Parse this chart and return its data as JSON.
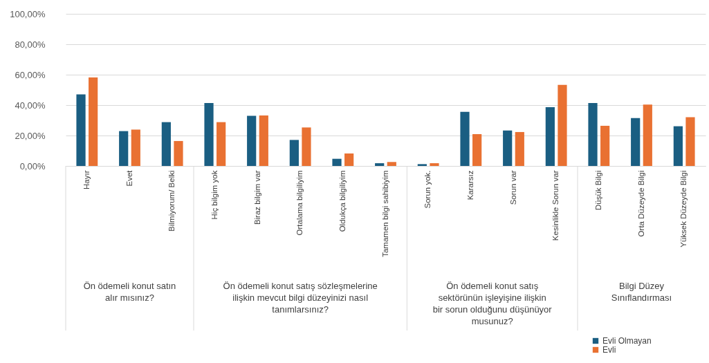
{
  "chart_data": {
    "type": "bar",
    "categories": [
      "Hayır",
      "Evet",
      "Bilmiyorum/ Belki",
      "Hiç bilgim yok",
      "Biraz bilgim var",
      "Ortalama bilgiliyim",
      "Oldukça bilgiliyim",
      "Tamamen bilgi sahibiyim",
      "Sorun yok.",
      "Kararsız",
      "Sorun var",
      "Kesinlikle Sorun var",
      "Düşük Bilgi",
      "Orta Düzeyde Bilgi",
      "Yüksek Düzeyde Bilgi"
    ],
    "series": [
      {
        "name": "Evli Olmayan",
        "color": "#1a5e82",
        "values": [
          47.1,
          22.9,
          28.8,
          41.4,
          32.9,
          17.1,
          4.7,
          1.8,
          1.2,
          35.6,
          23.3,
          38.6,
          41.4,
          31.5,
          26.1
        ]
      },
      {
        "name": "Evli",
        "color": "#e97132",
        "values": [
          58.2,
          23.9,
          16.4,
          28.8,
          33.2,
          25.3,
          8.2,
          2.6,
          1.8,
          20.9,
          22.3,
          53.3,
          26.4,
          40.3,
          32.1
        ]
      }
    ],
    "annotations": [
      "Ön ödemeli konut satın alır mısınız?",
      "Ön ödemeli konut satış sözleşmelerine ilişkin mevcut bilgi düzeyinizi nasıl tanımlarsınız?",
      "Ön ödemeli konut satış sektörünün işleyişine ilişkin bir sorun olduğunu düşünüyor musunuz?",
      "Bilgi Düzey Sınıflandırması"
    ],
    "ylim": [
      0,
      100
    ],
    "yticks": [
      {
        "value": 0,
        "label": "0,00%"
      },
      {
        "value": 20,
        "label": "20,00%"
      },
      {
        "value": 40,
        "label": "40,00%"
      },
      {
        "value": 60,
        "label": "60,00%"
      },
      {
        "value": 80,
        "label": "80,00%"
      },
      {
        "value": 100,
        "label": "100,00%"
      }
    ],
    "grid": "y",
    "legend": "bottom right"
  }
}
